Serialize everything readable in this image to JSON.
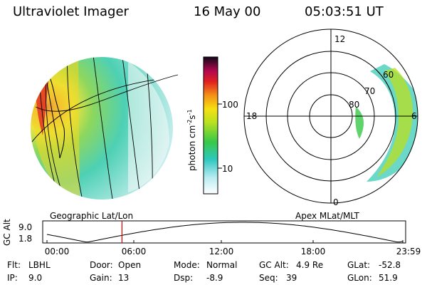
{
  "header": {
    "instrument": "Ultraviolet Imager",
    "date": "16 May 00",
    "time": "05:03:51 UT"
  },
  "colorbar": {
    "unit_label": "photon cm",
    "unit_sup1": "-2",
    "unit_mid": "s",
    "unit_sup2": "-1",
    "ticks": [
      "100",
      "10"
    ],
    "scale": "log"
  },
  "polar_plot": {
    "mlt_labels": {
      "top": "12",
      "left": "18",
      "right": "6",
      "bottom": "0"
    },
    "lat_labels": [
      "60",
      "70",
      "80"
    ]
  },
  "panel_labels": {
    "left": "Geographic Lat/Lon",
    "right": "Apex MLat/MLT"
  },
  "altitude_plot": {
    "ylabel_line1": "GC",
    "ylabel_line2": "Alt",
    "ymax": "9.0",
    "ymin": "1.8",
    "xticks": [
      "00:00",
      "06:00",
      "12:00",
      "18:00",
      "23:59"
    ],
    "current_time_hours": 5.06
  },
  "status": {
    "filter_label": "Flt:",
    "filter_value": "LBHL",
    "ip_label": "IP:",
    "ip_value": "9.0",
    "door_label": "Door:",
    "door_value": "Open",
    "gain_label": "Gain:",
    "gain_value": "13",
    "mode_label": "Mode:",
    "mode_value": "Normal",
    "dsp_label": "Dsp:",
    "dsp_value": "-8.9",
    "gcalt_label": "GC Alt:",
    "gcalt_value": "4.9 Re",
    "seq_label": "Seq:",
    "seq_value": "39",
    "glat_label": "GLat:",
    "glat_value": "-52.8",
    "glon_label": "GLon:",
    "glon_value": "51.9"
  },
  "colors": {
    "marker": "#d00000"
  }
}
